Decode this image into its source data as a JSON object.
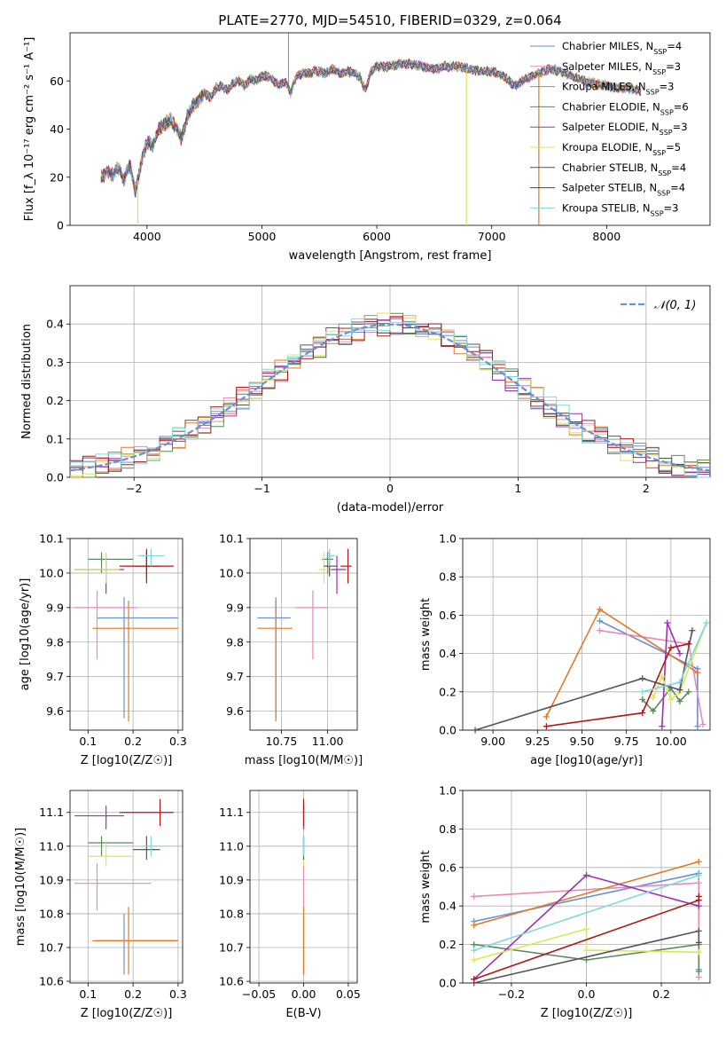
{
  "colors": {
    "Chabrier MILES": "#6a8fd6",
    "Salpeter MILES": "#e68ab8",
    "Kroupa MILES": "#e07a2a",
    "Chabrier ELODIE": "#5a8a5a",
    "Salpeter ELODIE": "#9b30b0",
    "Kroupa ELODIE": "#d6e85a",
    "Chabrier STELIB": "#555555",
    "Salpeter STELIB": "#b01818",
    "Kroupa STELIB": "#80d8dc",
    "gaussian": "#6a8fd6"
  },
  "chart_data": [
    {
      "type": "line",
      "title": "PLATE=2770, MJD=54510, FIBERID=0329, z=0.064",
      "xlabel": "wavelength [Angstrom, rest frame]",
      "ylabel": "Flux [f_λ 10⁻¹⁷ erg cm⁻² s⁻¹ A⁻¹]",
      "xlim": [
        3330,
        8900
      ],
      "ylim": [
        0,
        80
      ],
      "xticks": [
        "4000",
        "5000",
        "6000",
        "7000",
        "8000"
      ],
      "yticks": [
        "0",
        "20",
        "40",
        "60"
      ],
      "legend_position": "top-right",
      "grid": false,
      "legend": [
        "Chabrier MILES, N_SSP=4",
        "Salpeter MILES, N_SSP=3",
        "Kroupa MILES, N_SSP=3",
        "Chabrier ELODIE, N_SSP=6",
        "Salpeter ELODIE, N_SSP=3",
        "Kroupa ELODIE, N_SSP=5",
        "Chabrier STELIB, N_SSP=4",
        "Salpeter STELIB, N_SSP=4",
        "Kroupa STELIB, N_SSP=3"
      ],
      "spectrum": {
        "x": [
          3600,
          3650,
          3700,
          3750,
          3800,
          3850,
          3900,
          3950,
          4000,
          4050,
          4100,
          4150,
          4200,
          4250,
          4300,
          4350,
          4400,
          4450,
          4500,
          4550,
          4600,
          4650,
          4700,
          4750,
          4800,
          4850,
          4900,
          4950,
          5000,
          5050,
          5100,
          5150,
          5200,
          5250,
          5300,
          5350,
          5400,
          5450,
          5500,
          5550,
          5600,
          5650,
          5700,
          5750,
          5800,
          5850,
          5900,
          5950,
          6000,
          6100,
          6200,
          6300,
          6400,
          6500,
          6600,
          6700,
          6800,
          6900,
          7000,
          7100,
          7200,
          7300,
          7400,
          7500,
          7600,
          7700,
          7800,
          7900,
          8000,
          8100,
          8200,
          8300
        ],
        "y": [
          20,
          22,
          21,
          24,
          19,
          25,
          14,
          26,
          35,
          33,
          40,
          42,
          44,
          41,
          36,
          45,
          50,
          52,
          55,
          53,
          57,
          58,
          56,
          59,
          60,
          58,
          61,
          60,
          62,
          62,
          60,
          58,
          60,
          55,
          62,
          63,
          63,
          64,
          64,
          63,
          65,
          64,
          63,
          64,
          63,
          62,
          56,
          64,
          66,
          66,
          67,
          67,
          66,
          65,
          66,
          66,
          65,
          64,
          64,
          62,
          58,
          61,
          63,
          65,
          64,
          62,
          60,
          59,
          58,
          57,
          57,
          56
        ]
      },
      "dropouts": [
        {
          "model": "Kroupa ELODIE",
          "x": 3920
        },
        {
          "model": "Kroupa ELODIE",
          "x": 6780
        },
        {
          "model": "Kroupa MILES",
          "x": 7410
        }
      ]
    },
    {
      "type": "bar",
      "xlabel": "(data-model)/error",
      "ylabel": "Normed distribution",
      "xlim": [
        -2.5,
        2.5
      ],
      "ylim": [
        0,
        0.5
      ],
      "xticks": [
        "−2",
        "−1",
        "0",
        "1",
        "2"
      ],
      "yticks": [
        "0.0",
        "0.1",
        "0.2",
        "0.3",
        "0.4"
      ],
      "grid": true,
      "legend": [
        "𝒩(0, 1)"
      ],
      "legend_position": "top-right",
      "bin_width": 0.1
    },
    {
      "type": "scatter",
      "xlabel": "Z [log10(Z/Z☉)]",
      "ylabel": "age  [log10(age/yr)]",
      "xlim": [
        0.06,
        0.31
      ],
      "ylim": [
        9.545,
        10.1
      ],
      "xticks": [
        "0.1",
        "0.2",
        "0.3"
      ],
      "yticks": [
        "9.6",
        "9.7",
        "9.8",
        "9.9",
        "10.0",
        "10.1"
      ],
      "grid": true,
      "points": [
        {
          "model": "Chabrier MILES",
          "x": 0.18,
          "y": 9.87,
          "xerr": [
            0.12,
            0.3
          ],
          "yerr": [
            9.58,
            9.93
          ]
        },
        {
          "model": "Salpeter MILES",
          "x": 0.12,
          "y": 9.9,
          "xerr": [
            0.07,
            0.21
          ],
          "yerr": [
            9.75,
            9.95
          ]
        },
        {
          "model": "Kroupa MILES",
          "x": 0.19,
          "y": 9.84,
          "xerr": [
            0.11,
            0.3
          ],
          "yerr": [
            9.57,
            9.92
          ]
        },
        {
          "model": "Chabrier ELODIE",
          "x": 0.13,
          "y": 10.04,
          "xerr": [
            0.1,
            0.2
          ],
          "yerr": [
            10.0,
            10.06
          ]
        },
        {
          "model": "Salpeter ELODIE",
          "x": 0.14,
          "y": 10.01,
          "xerr": [
            0.07,
            0.18
          ],
          "yerr": [
            9.94,
            10.05
          ]
        },
        {
          "model": "Kroupa ELODIE",
          "x": 0.14,
          "y": 10.01,
          "xerr": [
            0.07,
            0.17
          ],
          "yerr": [
            9.97,
            10.06
          ]
        },
        {
          "model": "Chabrier STELIB",
          "x": 0.23,
          "y": 10.02,
          "xerr": [
            0.2,
            0.26
          ],
          "yerr": [
            9.99,
            10.06
          ]
        },
        {
          "model": "Salpeter STELIB",
          "x": 0.23,
          "y": 10.02,
          "xerr": [
            0.17,
            0.29
          ],
          "yerr": [
            9.97,
            10.07
          ]
        },
        {
          "model": "Kroupa STELIB",
          "x": 0.24,
          "y": 10.05,
          "xerr": [
            0.21,
            0.27
          ],
          "yerr": [
            10.02,
            10.07
          ]
        }
      ]
    },
    {
      "type": "scatter",
      "xlabel": "mass [log10(M/M☉)]",
      "ylabel": "",
      "xlim": [
        10.58,
        11.16
      ],
      "ylim": [
        9.545,
        10.1
      ],
      "xticks": [
        "10.75",
        "11.00"
      ],
      "yticks": [
        "9.6",
        "9.7",
        "9.8",
        "9.9",
        "10.0",
        "10.1"
      ],
      "grid": true,
      "points": [
        {
          "model": "Chabrier MILES",
          "x": 10.72,
          "y": 9.87,
          "xerr": [
            10.62,
            10.8
          ],
          "yerr": [
            9.58,
            9.93
          ]
        },
        {
          "model": "Salpeter MILES",
          "x": 10.92,
          "y": 9.9,
          "xerr": [
            10.83,
            11.0
          ],
          "yerr": [
            9.75,
            9.95
          ]
        },
        {
          "model": "Kroupa MILES",
          "x": 10.72,
          "y": 9.84,
          "xerr": [
            10.62,
            10.81
          ],
          "yerr": [
            9.57,
            9.92
          ]
        },
        {
          "model": "Chabrier ELODIE",
          "x": 11.0,
          "y": 10.04,
          "xerr": [
            10.97,
            11.03
          ],
          "yerr": [
            10.0,
            10.06
          ]
        },
        {
          "model": "Salpeter ELODIE",
          "x": 11.05,
          "y": 10.01,
          "xerr": [
            11.0,
            11.1
          ],
          "yerr": [
            9.94,
            10.05
          ]
        },
        {
          "model": "Kroupa ELODIE",
          "x": 10.98,
          "y": 10.01,
          "xerr": [
            10.95,
            11.02
          ],
          "yerr": [
            9.97,
            10.06
          ]
        },
        {
          "model": "Chabrier STELIB",
          "x": 11.01,
          "y": 10.02,
          "xerr": [
            10.98,
            11.05
          ],
          "yerr": [
            9.99,
            10.06
          ]
        },
        {
          "model": "Salpeter STELIB",
          "x": 11.11,
          "y": 10.02,
          "xerr": [
            11.07,
            11.13
          ],
          "yerr": [
            9.97,
            10.07
          ]
        },
        {
          "model": "Kroupa STELIB",
          "x": 11.01,
          "y": 10.05,
          "xerr": [
            10.99,
            11.04
          ],
          "yerr": [
            10.02,
            10.07
          ]
        }
      ]
    },
    {
      "type": "line",
      "xlabel": "age  [log10(age/yr)]",
      "ylabel": "mass weight",
      "xlim": [
        8.83,
        10.22
      ],
      "ylim": [
        0,
        1
      ],
      "xticks": [
        "9.00",
        "9.25",
        "9.50",
        "9.75",
        "10.00"
      ],
      "yticks": [
        "0.0",
        "0.2",
        "0.4",
        "0.6",
        "0.8",
        "1.0"
      ],
      "grid": true,
      "series": [
        {
          "model": "Chabrier MILES",
          "x": [
            9.6,
            10.15,
            10.15
          ],
          "y": [
            0.57,
            0.32,
            0.02
          ]
        },
        {
          "model": "Salpeter MILES",
          "x": [
            9.6,
            10.1,
            10.18
          ],
          "y": [
            0.52,
            0.45,
            0.03
          ]
        },
        {
          "model": "Kroupa MILES",
          "x": [
            9.3,
            9.6,
            10.15
          ],
          "y": [
            0.07,
            0.63,
            0.3
          ]
        },
        {
          "model": "Chabrier ELODIE",
          "x": [
            9.84,
            9.9,
            10.0,
            10.05,
            10.1
          ],
          "y": [
            0.16,
            0.1,
            0.22,
            0.15,
            0.2
          ]
        },
        {
          "model": "Salpeter ELODIE",
          "x": [
            9.95,
            9.98,
            10.05
          ],
          "y": [
            0.02,
            0.56,
            0.4
          ]
        },
        {
          "model": "Kroupa ELODIE",
          "x": [
            9.9,
            9.95,
            10.0,
            10.05,
            10.2
          ],
          "y": [
            0.17,
            0.28,
            0.16,
            0.2,
            0.56
          ]
        },
        {
          "model": "Chabrier STELIB",
          "x": [
            8.9,
            9.84,
            10.05,
            10.12
          ],
          "y": [
            0.0,
            0.27,
            0.21,
            0.52
          ]
        },
        {
          "model": "Salpeter STELIB",
          "x": [
            9.3,
            9.84,
            10.0,
            10.1
          ],
          "y": [
            0.02,
            0.09,
            0.43,
            0.45
          ]
        },
        {
          "model": "Kroupa STELIB",
          "x": [
            9.84,
            10.05,
            10.2
          ],
          "y": [
            0.2,
            0.25,
            0.56
          ]
        }
      ]
    },
    {
      "type": "scatter",
      "xlabel": "Z [log10(Z/Z☉)]",
      "ylabel": "mass [log10(M/M☉)]",
      "xlim": [
        0.06,
        0.31
      ],
      "ylim": [
        10.595,
        11.165
      ],
      "xticks": [
        "0.1",
        "0.2",
        "0.3"
      ],
      "yticks": [
        "10.6",
        "10.7",
        "10.8",
        "10.9",
        "11.0",
        "11.1"
      ],
      "grid": true,
      "points": [
        {
          "model": "Chabrier MILES",
          "x": 0.18,
          "y": 10.72,
          "xerr": [
            0.12,
            0.3
          ],
          "yerr": [
            10.62,
            10.8
          ]
        },
        {
          "model": "Salpeter MILES",
          "x": 0.12,
          "y": 10.89,
          "xerr": [
            0.07,
            0.24
          ],
          "yerr": [
            10.81,
            10.95
          ]
        },
        {
          "model": "Kroupa MILES",
          "x": 0.19,
          "y": 10.72,
          "xerr": [
            0.11,
            0.3
          ],
          "yerr": [
            10.62,
            10.82
          ]
        },
        {
          "model": "Chabrier ELODIE",
          "x": 0.13,
          "y": 11.01,
          "xerr": [
            0.1,
            0.2
          ],
          "yerr": [
            10.97,
            11.03
          ]
        },
        {
          "model": "Salpeter ELODIE",
          "x": 0.14,
          "y": 11.09,
          "xerr": [
            0.07,
            0.18
          ],
          "yerr": [
            11.05,
            11.12
          ]
        },
        {
          "model": "Kroupa ELODIE",
          "x": 0.14,
          "y": 10.97,
          "xerr": [
            0.1,
            0.2
          ],
          "yerr": [
            10.94,
            11.01
          ]
        },
        {
          "model": "Chabrier STELIB",
          "x": 0.23,
          "y": 10.99,
          "xerr": [
            0.2,
            0.26
          ],
          "yerr": [
            10.96,
            11.03
          ]
        },
        {
          "model": "Salpeter STELIB",
          "x": 0.26,
          "y": 11.1,
          "xerr": [
            0.17,
            0.29
          ],
          "yerr": [
            11.06,
            11.14
          ]
        },
        {
          "model": "Kroupa STELIB",
          "x": 0.24,
          "y": 11.0,
          "xerr": [
            0.22,
            0.27
          ],
          "yerr": [
            10.97,
            11.03
          ]
        }
      ]
    },
    {
      "type": "scatter",
      "xlabel": "E(B-V)",
      "ylabel": "",
      "xlim": [
        -0.06,
        0.06
      ],
      "ylim": [
        10.595,
        11.165
      ],
      "xticks": [
        "−0.05",
        "0.00",
        "0.05"
      ],
      "yticks": [
        "10.6",
        "10.7",
        "10.8",
        "10.9",
        "11.0",
        "11.1"
      ],
      "grid": true,
      "points": [
        {
          "model": "Chabrier MILES",
          "x": 0,
          "y": 10.72,
          "yerr": [
            10.62,
            10.8
          ]
        },
        {
          "model": "Salpeter MILES",
          "x": 0,
          "y": 10.89,
          "yerr": [
            10.81,
            10.95
          ]
        },
        {
          "model": "Kroupa MILES",
          "x": 0,
          "y": 10.72,
          "yerr": [
            10.62,
            10.82
          ]
        },
        {
          "model": "Chabrier ELODIE",
          "x": 0,
          "y": 11.01,
          "yerr": [
            10.97,
            11.03
          ]
        },
        {
          "model": "Salpeter ELODIE",
          "x": 0,
          "y": 11.09,
          "yerr": [
            11.05,
            11.12
          ]
        },
        {
          "model": "Kroupa ELODIE",
          "x": 0,
          "y": 10.97,
          "yerr": [
            10.94,
            11.01
          ]
        },
        {
          "model": "Chabrier STELIB",
          "x": 0,
          "y": 10.99,
          "yerr": [
            10.96,
            11.03
          ]
        },
        {
          "model": "Salpeter STELIB",
          "x": 0,
          "y": 11.1,
          "yerr": [
            11.06,
            11.14
          ]
        },
        {
          "model": "Kroupa STELIB",
          "x": 0,
          "y": 11.0,
          "yerr": [
            10.97,
            11.03
          ]
        }
      ]
    },
    {
      "type": "line",
      "xlabel": "Z [log10(Z/Z☉)]",
      "ylabel": "mass weight",
      "xlim": [
        -0.33,
        0.33
      ],
      "ylim": [
        0,
        1
      ],
      "xticks": [
        "−0.2",
        "0.0",
        "0.2"
      ],
      "yticks": [
        "0.0",
        "0.2",
        "0.4",
        "0.6",
        "0.8",
        "1.0"
      ],
      "grid": true,
      "series": [
        {
          "model": "Chabrier MILES",
          "x": [
            -0.3,
            0.3,
            0.3
          ],
          "y": [
            0.32,
            0.57,
            0.07
          ]
        },
        {
          "model": "Salpeter MILES",
          "x": [
            -0.3,
            0.3,
            0.3
          ],
          "y": [
            0.45,
            0.52,
            0.03
          ]
        },
        {
          "model": "Kroupa MILES",
          "x": [
            -0.3,
            0.3
          ],
          "y": [
            0.3,
            0.63
          ]
        },
        {
          "model": "Chabrier ELODIE",
          "x": [
            -0.3,
            0.0,
            0.3,
            0.3
          ],
          "y": [
            0.2,
            0.12,
            0.2,
            0.06
          ]
        },
        {
          "model": "Salpeter ELODIE",
          "x": [
            -0.3,
            0.0,
            0.3
          ],
          "y": [
            0.02,
            0.56,
            0.4
          ]
        },
        {
          "model": "Kroupa ELODIE",
          "x": [
            -0.3,
            0.0,
            0.0,
            0.3
          ],
          "y": [
            0.12,
            0.28,
            0.17,
            0.16
          ]
        },
        {
          "model": "Chabrier STELIB",
          "x": [
            -0.3,
            0.3,
            0.3
          ],
          "y": [
            0.0,
            0.27,
            0.21
          ]
        },
        {
          "model": "Salpeter STELIB",
          "x": [
            -0.3,
            0.3,
            0.3
          ],
          "y": [
            0.02,
            0.43,
            0.45
          ]
        },
        {
          "model": "Kroupa STELIB",
          "x": [
            -0.3,
            0.3
          ],
          "y": [
            0.17,
            0.56
          ]
        }
      ]
    }
  ]
}
